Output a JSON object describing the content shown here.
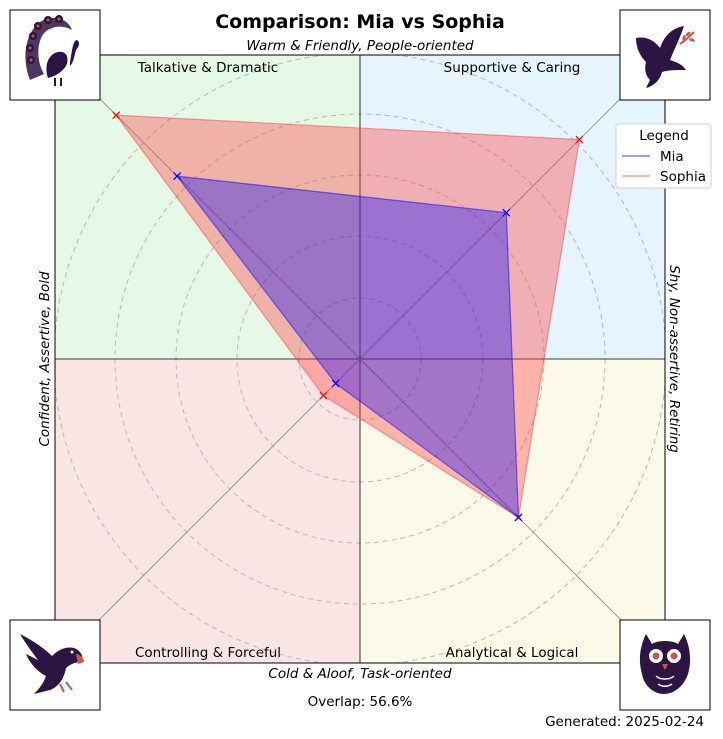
{
  "chart_data": {
    "type": "radar",
    "title": "Comparison: Mia vs Sophia",
    "axes": {
      "top": "Warm & Friendly, People-oriented",
      "bottom": "Cold & Aloof, Task-oriented",
      "left": "Confident, Assertive, Bold",
      "right": "Shy, Non-assertive, Retiring"
    },
    "quadrants": [
      {
        "name": "Talkative & Dramatic",
        "color": "#e6f9e6",
        "icon": "peacock-icon"
      },
      {
        "name": "Supportive & Caring",
        "color": "#e6f4fd",
        "icon": "dove-icon"
      },
      {
        "name": "Controlling & Forceful",
        "color": "#fae5e5",
        "icon": "eagle-icon"
      },
      {
        "name": "Analytical & Logical",
        "color": "#fbfae9",
        "icon": "owl-icon"
      }
    ],
    "dimensions": [
      "Talkative & Dramatic",
      "Supportive & Caring",
      "Analytical & Logical",
      "Controlling & Forceful"
    ],
    "rlim": [
      0,
      1
    ],
    "grid_circles": [
      0.2,
      0.4,
      0.6,
      0.8,
      1.0
    ],
    "series": [
      {
        "name": "Mia",
        "color": "#0000ff",
        "marker_color": "#0000ff",
        "values": [
          0.6,
          0.48,
          0.52,
          0.08
        ]
      },
      {
        "name": "Sophia",
        "color": "#ff4040",
        "marker_color": "#ff0000",
        "values": [
          0.8,
          0.72,
          0.52,
          0.12
        ]
      }
    ],
    "legend": {
      "title": "Legend",
      "position": "top-right"
    },
    "overlap_text": "Overlap: 56.6%",
    "generated_text": "Generated: 2025-02-24"
  }
}
